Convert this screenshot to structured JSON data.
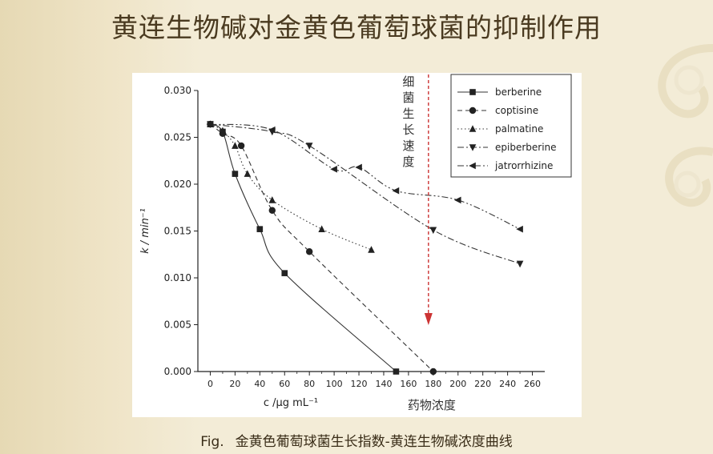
{
  "slide": {
    "title": "黄连生物碱对金黄色葡萄球菌的抑制作用",
    "caption_prefix": "Fig.",
    "caption_text": "金黄色葡萄球菌生长指数-黄连生物碱浓度曲线"
  },
  "chart_data": {
    "type": "line",
    "xlabel": "c /μg mL⁻¹",
    "ylabel": "k / min⁻¹",
    "xlim": [
      -10,
      270
    ],
    "ylim": [
      0,
      0.03
    ],
    "xticks": [
      0,
      20,
      40,
      60,
      80,
      100,
      120,
      140,
      160,
      180,
      200,
      220,
      240,
      260
    ],
    "yticks": [
      "0.000",
      "0.005",
      "0.010",
      "0.015",
      "0.020",
      "0.025",
      "0.030"
    ],
    "legend_position": "top-right",
    "series": [
      {
        "name": "berberine",
        "marker": "square",
        "dash": "",
        "x": [
          0,
          10,
          20,
          40,
          60,
          150
        ],
        "y": [
          0.0264,
          0.0256,
          0.0211,
          0.0152,
          0.0105,
          0.0
        ]
      },
      {
        "name": "coptisine",
        "marker": "circle",
        "dash": "6,4",
        "x": [
          0,
          10,
          25,
          50,
          80,
          180
        ],
        "y": [
          0.0264,
          0.0254,
          0.0241,
          0.0172,
          0.0128,
          0.0
        ]
      },
      {
        "name": "palmatine",
        "marker": "triangle-up",
        "dash": "1.5,3",
        "x": [
          0,
          10,
          20,
          30,
          50,
          90,
          130
        ],
        "y": [
          0.0264,
          0.0257,
          0.0241,
          0.0211,
          0.0183,
          0.0152,
          0.013
        ]
      },
      {
        "name": "epiberberine",
        "marker": "triangle-down",
        "dash": "8,3,2,3",
        "x": [
          0,
          50,
          80,
          180,
          250
        ],
        "y": [
          0.0264,
          0.0256,
          0.0241,
          0.0151,
          0.0115
        ]
      },
      {
        "name": "jatrorrhizine",
        "marker": "triangle-left",
        "dash": "8,3,2,3,2,3",
        "x": [
          0,
          50,
          100,
          120,
          150,
          200,
          250
        ],
        "y": [
          0.0264,
          0.0258,
          0.0216,
          0.0218,
          0.0193,
          0.0183,
          0.0152
        ]
      }
    ],
    "annotations": {
      "arrow_label": "细菌生长速度",
      "x_annotation": "药物浓度",
      "arrow_color": "#cc3333"
    }
  }
}
